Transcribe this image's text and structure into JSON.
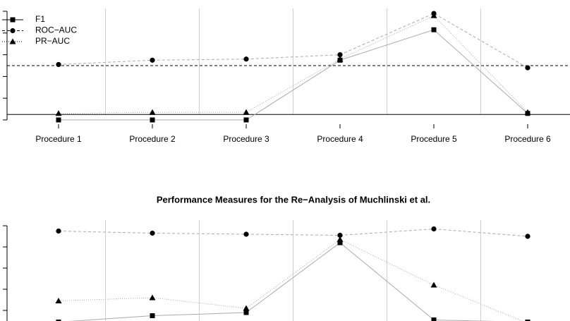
{
  "chart_data": [
    {
      "type": "line",
      "categories": [
        "Procedure 1",
        "Procedure 2",
        "Procedure 3",
        "Procedure 4",
        "Procedure 5",
        "Procedure 6"
      ],
      "series": [
        {
          "name": "F1",
          "color": "#aaaaaa",
          "marker": "square",
          "line_style": "solid",
          "values": [
            0,
            0,
            0,
            0.55,
            0.83,
            0.06
          ]
        },
        {
          "name": "ROC−AUC",
          "color": "#aaaaaa",
          "marker": "circle",
          "line_style": "dashed",
          "values": [
            0.51,
            0.55,
            0.56,
            0.6,
            0.98,
            0.48
          ]
        },
        {
          "name": "PR−AUC",
          "color": "#aaaaaa",
          "marker": "triangle",
          "line_style": "dotted",
          "values": [
            0.06,
            0.07,
            0.07,
            0.56,
            0.96,
            0.07
          ]
        }
      ],
      "reference_lines": [
        {
          "value": 0.5,
          "style": "dashed"
        },
        {
          "value": 0.05,
          "style": "solid"
        }
      ],
      "ylim": [
        0,
        1
      ],
      "yticks": [
        0,
        0.2,
        0.4,
        0.6,
        0.8,
        1
      ],
      "legend": "top-left"
    },
    {
      "type": "line",
      "title": "Performance Measures for the Re−Analysis of Muchlinski et al.",
      "categories": [
        null,
        null,
        null,
        null,
        null,
        null
      ],
      "series": [
        {
          "name": "F1",
          "color": "#aaaaaa",
          "marker": "square",
          "line_style": "solid",
          "values": [
            0.09,
            0.15,
            0.18,
            0.84,
            0.11,
            0.09
          ]
        },
        {
          "name": "ROC−AUC",
          "color": "#aaaaaa",
          "marker": "circle",
          "line_style": "dashed",
          "values": [
            0.95,
            0.93,
            0.92,
            0.91,
            0.97,
            0.9
          ]
        },
        {
          "name": "PR−AUC",
          "color": "#aaaaaa",
          "marker": "triangle",
          "line_style": "dotted",
          "values": [
            0.29,
            0.32,
            0.22,
            0.87,
            0.44,
            0.08
          ]
        }
      ],
      "ylim": [
        0,
        1
      ],
      "yticks": [
        0,
        0.2,
        0.4,
        0.6,
        0.8,
        1
      ],
      "legend": "none"
    }
  ]
}
